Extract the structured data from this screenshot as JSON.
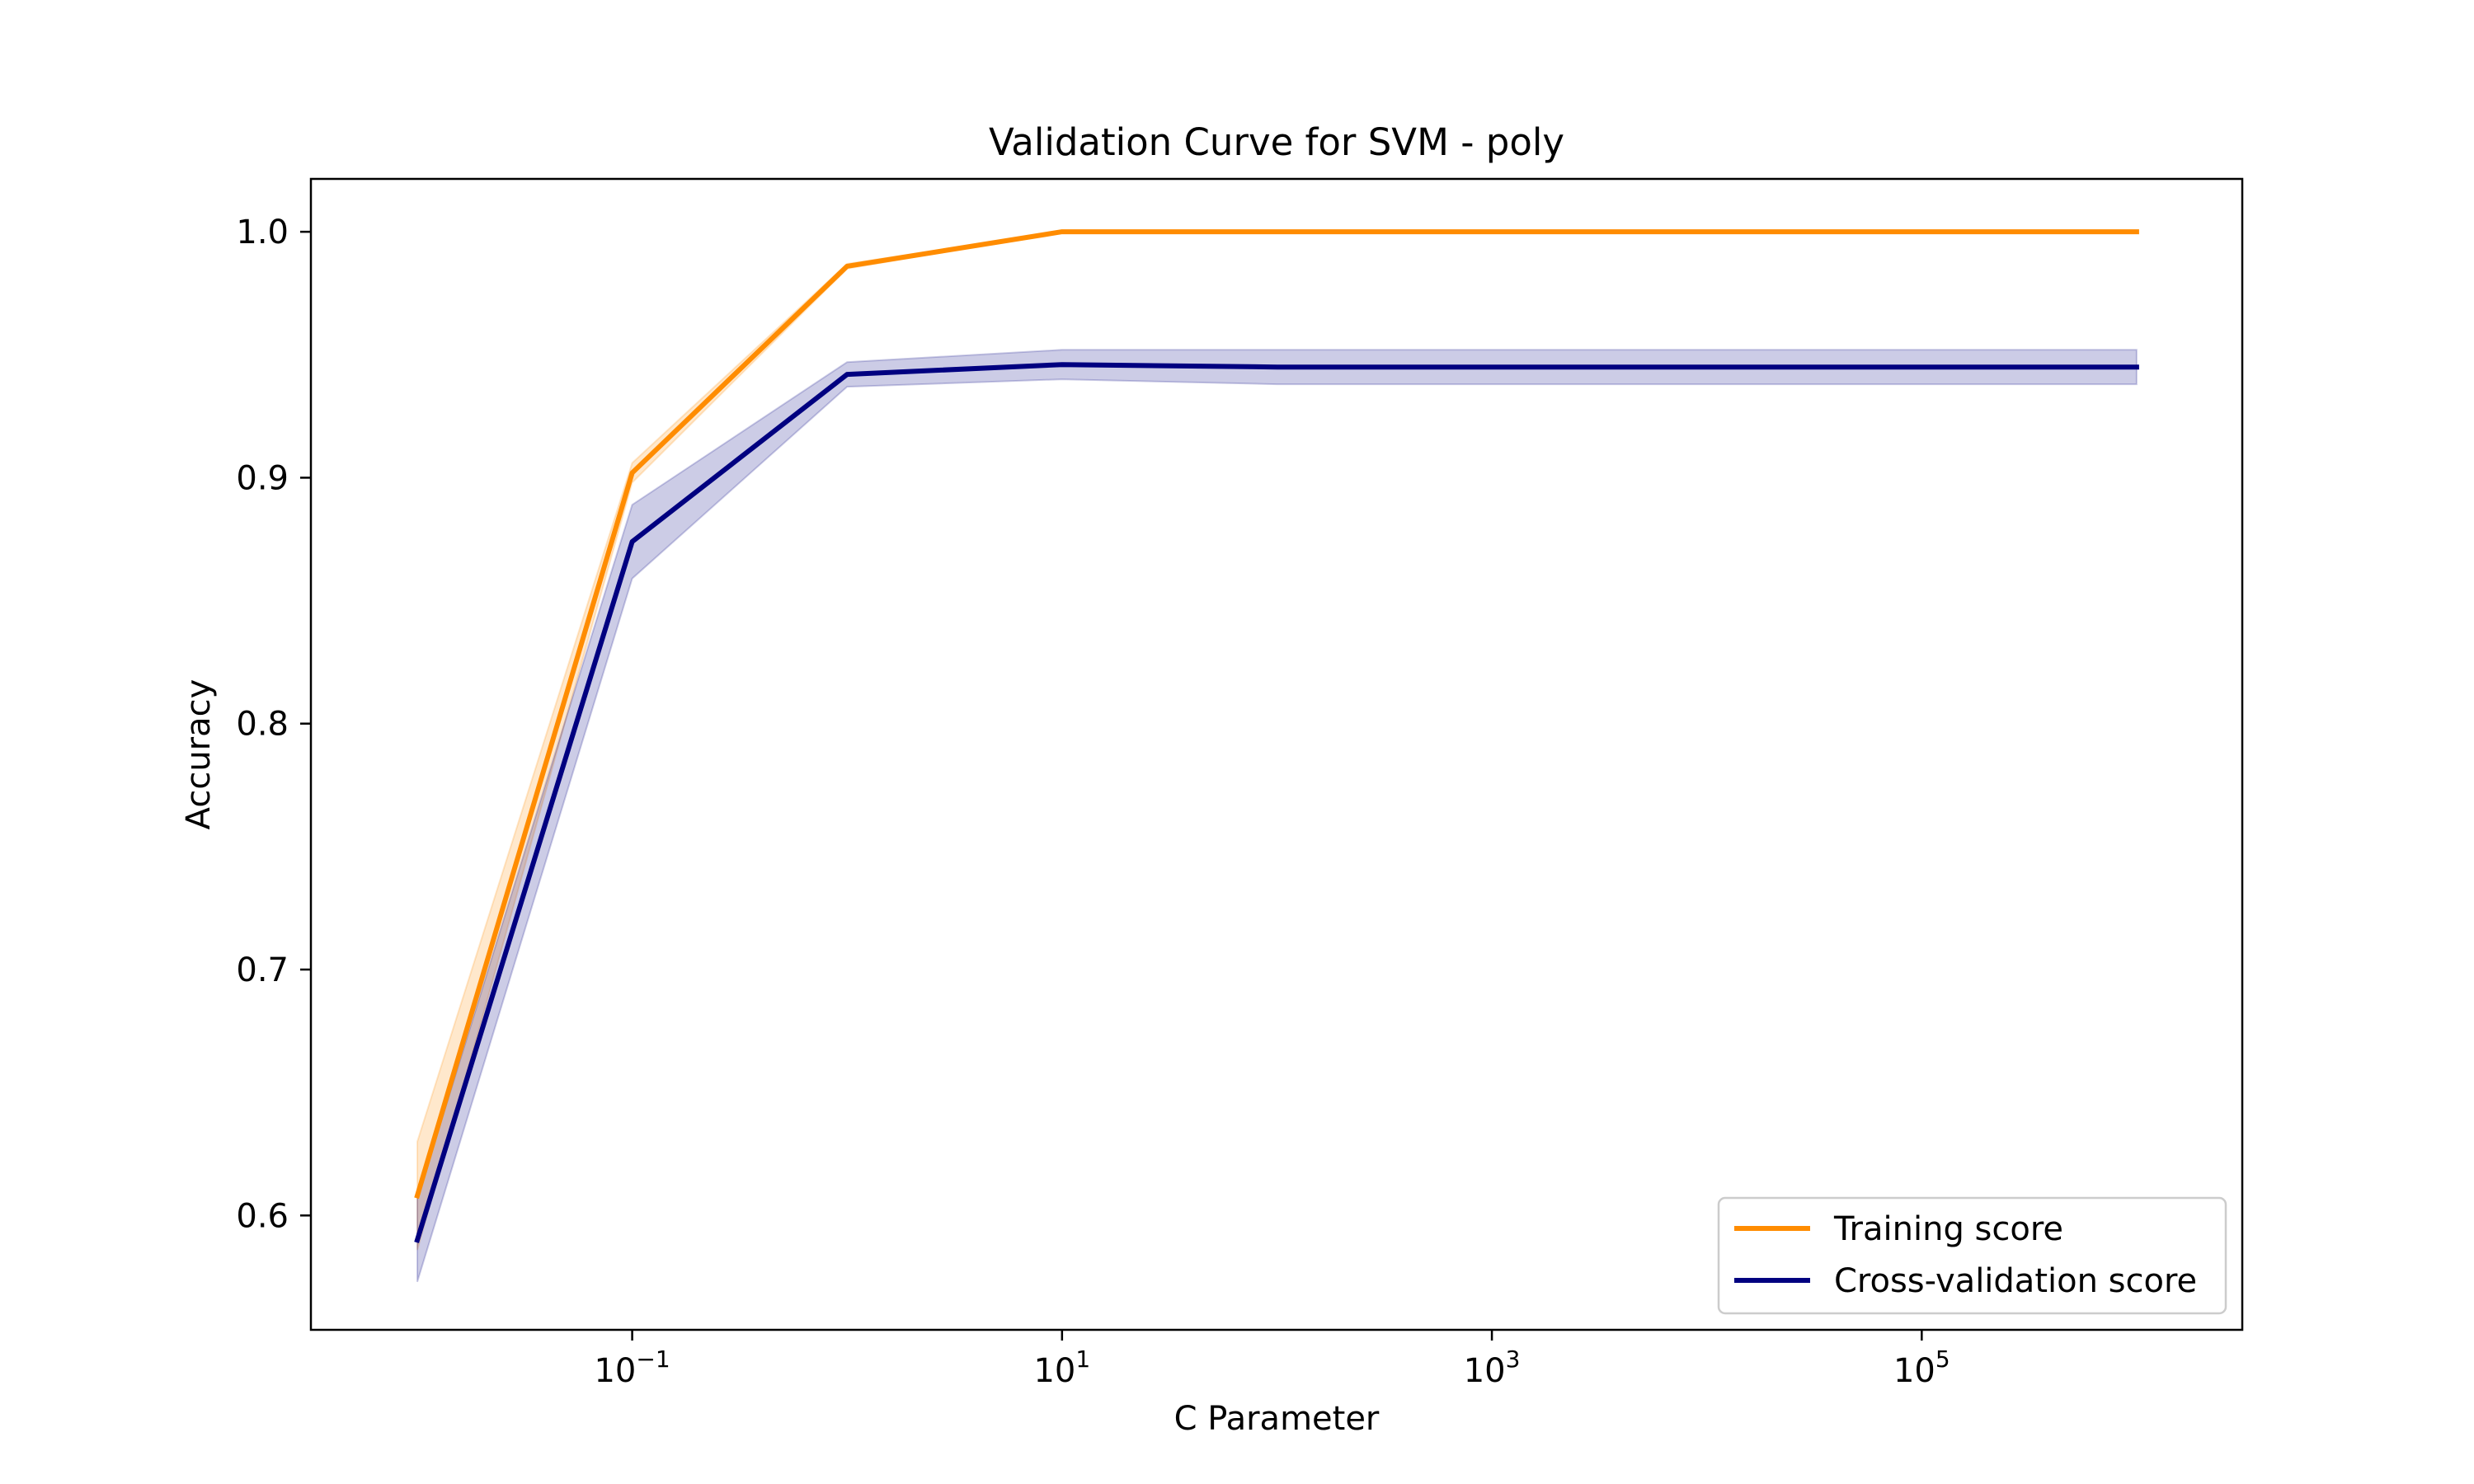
{
  "chart_data": {
    "type": "line",
    "title": "Validation Curve for SVM - poly",
    "xlabel": "C Parameter",
    "ylabel": "Accuracy",
    "xscale": "log",
    "x": [
      0.01,
      0.1,
      1,
      10,
      100,
      1000,
      10000,
      100000,
      1000000
    ],
    "xlim": [
      0.0032,
      3100000
    ],
    "ylim": [
      0.5535,
      1.0215
    ],
    "xticks": [
      {
        "value": 0.1,
        "base": "10",
        "exp": "−1"
      },
      {
        "value": 10,
        "base": "10",
        "exp": "1"
      },
      {
        "value": 1000,
        "base": "10",
        "exp": "3"
      },
      {
        "value": 100000,
        "base": "10",
        "exp": "5"
      }
    ],
    "yticks": [
      {
        "value": 0.6,
        "label": "0.6"
      },
      {
        "value": 0.7,
        "label": "0.7"
      },
      {
        "value": 0.8,
        "label": "0.8"
      },
      {
        "value": 0.9,
        "label": "0.9"
      },
      {
        "value": 1.0,
        "label": "1.0"
      }
    ],
    "grid": false,
    "legend_position": "lower-right",
    "series": [
      {
        "name": "Training score",
        "color": "#ff8c00",
        "values": [
          0.608,
          0.902,
          0.986,
          1.0,
          1.0,
          1.0,
          1.0,
          1.0,
          1.0
        ],
        "std": [
          0.022,
          0.004,
          0.001,
          0.0,
          0.0,
          0.0,
          0.0,
          0.0,
          0.0
        ]
      },
      {
        "name": "Cross-validation score",
        "color": "#000080",
        "values": [
          0.59,
          0.874,
          0.942,
          0.946,
          0.945,
          0.945,
          0.945,
          0.945,
          0.945
        ],
        "std": [
          0.017,
          0.015,
          0.005,
          0.006,
          0.007,
          0.007,
          0.007,
          0.007,
          0.007
        ]
      }
    ]
  }
}
